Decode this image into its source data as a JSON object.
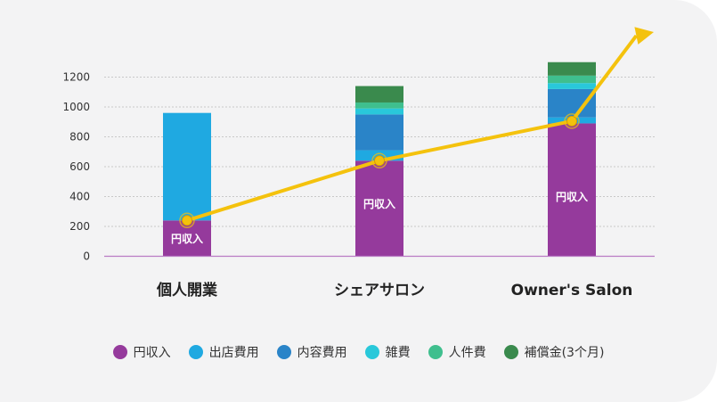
{
  "chart_data": {
    "type": "bar",
    "stacked": true,
    "categories": [
      "個人開業",
      "シェアサロン",
      "Owner's Salon"
    ],
    "ylim": [
      0,
      1300
    ],
    "yticks": [
      0,
      200,
      400,
      600,
      800,
      1000,
      1200
    ],
    "grid": true,
    "legend_position": "bottom",
    "series": [
      {
        "name": "円収入",
        "color": "#953a9c",
        "values": [
          240,
          640,
          890
        ]
      },
      {
        "name": "出店費用",
        "color": "#1fa9e1",
        "values": [
          720,
          70,
          40
        ]
      },
      {
        "name": "内容費用",
        "color": "#2a84c8",
        "values": [
          0,
          240,
          190
        ]
      },
      {
        "name": "雑費",
        "color": "#29c8da",
        "values": [
          0,
          40,
          40
        ]
      },
      {
        "name": "人件費",
        "color": "#3fbf8e",
        "values": [
          0,
          40,
          50
        ]
      },
      {
        "name": "補償金(3个月)",
        "color": "#3a8a4d",
        "values": [
          0,
          110,
          90
        ]
      }
    ],
    "data_labels": [
      "円収入",
      "円収入",
      "円収入"
    ],
    "trend_line": {
      "color": "#f4c20d",
      "values": [
        240,
        640,
        905
      ]
    }
  }
}
